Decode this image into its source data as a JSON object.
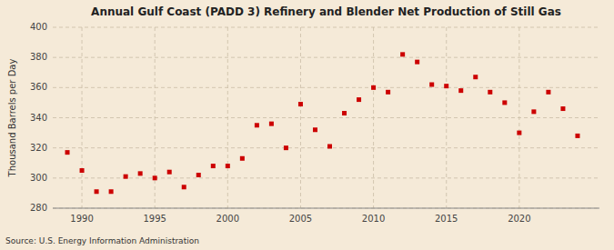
{
  "chart_data": {
    "type": "scatter",
    "title": "Annual Gulf Coast (PADD 3) Refinery and Blender Net Production of Still Gas",
    "ylabel": "Thousand Barrels per Day",
    "annotation": "Source: U.S. Energy Information Administration",
    "color": "#cc0000",
    "marker": "square",
    "grid": true,
    "xlim": [
      1988.0,
      2025.5
    ],
    "ylim": [
      280,
      400
    ],
    "xticks": [
      1990,
      1995,
      2000,
      2005,
      2010,
      2015,
      2020
    ],
    "yticks": [
      280,
      300,
      320,
      340,
      360,
      380,
      400
    ],
    "x": [
      1989,
      1990,
      1991,
      1992,
      1993,
      1994,
      1995,
      1996,
      1997,
      1998,
      1999,
      2000,
      2001,
      2002,
      2003,
      2004,
      2005,
      2006,
      2007,
      2008,
      2009,
      2010,
      2011,
      2012,
      2013,
      2014,
      2015,
      2016,
      2017,
      2018,
      2019,
      2020,
      2021,
      2022,
      2023,
      2024
    ],
    "values": [
      317,
      305,
      291,
      291,
      301,
      303,
      300,
      304,
      294,
      302,
      308,
      308,
      313,
      335,
      336,
      320,
      349,
      332,
      321,
      343,
      352,
      360,
      357,
      382,
      377,
      362,
      361,
      358,
      367,
      357,
      350,
      330,
      344,
      357,
      346,
      328
    ]
  }
}
